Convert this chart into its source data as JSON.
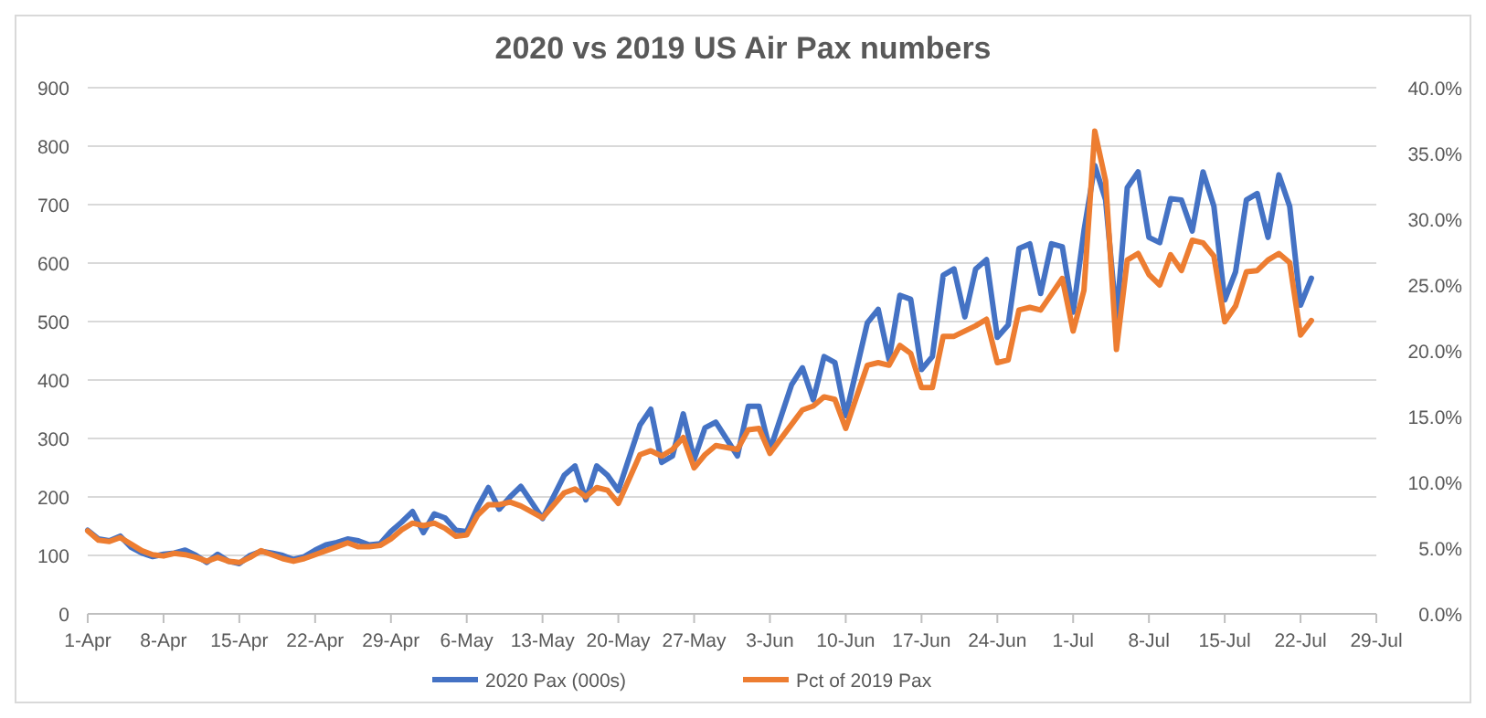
{
  "chart_data": {
    "type": "line",
    "title": "2020 vs 2019 US Air Pax numbers",
    "x": [
      "2020-04-01",
      "2020-04-02",
      "2020-04-03",
      "2020-04-04",
      "2020-04-05",
      "2020-04-06",
      "2020-04-07",
      "2020-04-08",
      "2020-04-09",
      "2020-04-10",
      "2020-04-11",
      "2020-04-12",
      "2020-04-13",
      "2020-04-14",
      "2020-04-15",
      "2020-04-16",
      "2020-04-17",
      "2020-04-18",
      "2020-04-19",
      "2020-04-20",
      "2020-04-21",
      "2020-04-22",
      "2020-04-23",
      "2020-04-24",
      "2020-04-25",
      "2020-04-26",
      "2020-04-27",
      "2020-04-28",
      "2020-04-29",
      "2020-04-30",
      "2020-05-01",
      "2020-05-02",
      "2020-05-03",
      "2020-05-04",
      "2020-05-05",
      "2020-05-06",
      "2020-05-07",
      "2020-05-08",
      "2020-05-09",
      "2020-05-10",
      "2020-05-11",
      "2020-05-13",
      "2020-05-15",
      "2020-05-16",
      "2020-05-17",
      "2020-05-18",
      "2020-05-19",
      "2020-05-20",
      "2020-05-22",
      "2020-05-23",
      "2020-05-24",
      "2020-05-25",
      "2020-05-26",
      "2020-05-27",
      "2020-05-28",
      "2020-05-29",
      "2020-05-31",
      "2020-06-01",
      "2020-06-02",
      "2020-06-03",
      "2020-06-05",
      "2020-06-06",
      "2020-06-07",
      "2020-06-08",
      "2020-06-09",
      "2020-06-10",
      "2020-06-12",
      "2020-06-13",
      "2020-06-14",
      "2020-06-15",
      "2020-06-16",
      "2020-06-17",
      "2020-06-18",
      "2020-06-19",
      "2020-06-20",
      "2020-06-21",
      "2020-06-22",
      "2020-06-23",
      "2020-06-24",
      "2020-06-25",
      "2020-06-26",
      "2020-06-27",
      "2020-06-28",
      "2020-06-29",
      "2020-06-30",
      "2020-07-01",
      "2020-07-02",
      "2020-07-03",
      "2020-07-04",
      "2020-07-05",
      "2020-07-06",
      "2020-07-07",
      "2020-07-08",
      "2020-07-09",
      "2020-07-10",
      "2020-07-11",
      "2020-07-12",
      "2020-07-13",
      "2020-07-14",
      "2020-07-15",
      "2020-07-16",
      "2020-07-17",
      "2020-07-18",
      "2020-07-19",
      "2020-07-20",
      "2020-07-21",
      "2020-07-22",
      "2020-07-23"
    ],
    "series": [
      {
        "name": "2020 Pax (000s)",
        "color": "#4472c4",
        "values": [
          143,
          128,
          125,
          133,
          114,
          104,
          98,
          102,
          104,
          109,
          100,
          88,
          102,
          90,
          86,
          100,
          107,
          104,
          100,
          93,
          98,
          109,
          118,
          122,
          128,
          125,
          118,
          120,
          141,
          157,
          175,
          139,
          171,
          164,
          143,
          141,
          182,
          216,
          179,
          200,
          218,
          163,
          237,
          253,
          195,
          253,
          237,
          211,
          323,
          350,
          259,
          270,
          342,
          264,
          318,
          328,
          270,
          355,
          355,
          280,
          392,
          421,
          366,
          440,
          430,
          339,
          498,
          521,
          435,
          545,
          538,
          418,
          440,
          579,
          590,
          508,
          590,
          606,
          473,
          494,
          625,
          633,
          548,
          633,
          628,
          516,
          655,
          767,
          708,
          505,
          729,
          756,
          644,
          635,
          710,
          708,
          655,
          756,
          697,
          537,
          585,
          708,
          719,
          644,
          751,
          697,
          528,
          574
        ]
      },
      {
        "name": "Pct of 2019 Pax",
        "color": "#ed7d31",
        "axis": "y2",
        "values": [
          6.3,
          5.6,
          5.5,
          5.8,
          5.3,
          4.8,
          4.5,
          4.4,
          4.6,
          4.5,
          4.3,
          4.0,
          4.3,
          4.0,
          3.9,
          4.3,
          4.8,
          4.5,
          4.2,
          4.0,
          4.2,
          4.5,
          4.8,
          5.1,
          5.4,
          5.1,
          5.1,
          5.2,
          5.7,
          6.4,
          6.9,
          6.7,
          6.9,
          6.5,
          5.9,
          6.0,
          7.5,
          8.3,
          8.3,
          8.5,
          8.2,
          7.3,
          9.2,
          9.5,
          8.9,
          9.6,
          9.4,
          8.4,
          12.1,
          12.4,
          12.0,
          12.5,
          13.4,
          11.1,
          12.1,
          12.8,
          12.5,
          14.0,
          14.1,
          12.2,
          14.4,
          15.5,
          15.8,
          16.5,
          16.3,
          14.1,
          18.9,
          19.1,
          18.9,
          20.4,
          19.8,
          17.2,
          17.2,
          21.1,
          21.1,
          21.5,
          21.9,
          22.4,
          19.1,
          19.3,
          23.1,
          23.3,
          23.1,
          24.3,
          25.5,
          21.5,
          24.6,
          36.7,
          32.9,
          20.1,
          26.9,
          27.4,
          25.8,
          25.0,
          27.3,
          26.1,
          28.4,
          28.2,
          27.2,
          22.2,
          23.4,
          26.0,
          26.1,
          26.9,
          27.4,
          26.7,
          21.2,
          22.3
        ]
      }
    ],
    "xlim": [
      "2020-04-01",
      "2020-07-29"
    ],
    "xticks": [
      {
        "value": "2020-04-01",
        "label": "1-Apr"
      },
      {
        "value": "2020-04-08",
        "label": "8-Apr"
      },
      {
        "value": "2020-04-15",
        "label": "15-Apr"
      },
      {
        "value": "2020-04-22",
        "label": "22-Apr"
      },
      {
        "value": "2020-04-29",
        "label": "29-Apr"
      },
      {
        "value": "2020-05-06",
        "label": "6-May"
      },
      {
        "value": "2020-05-13",
        "label": "13-May"
      },
      {
        "value": "2020-05-20",
        "label": "20-May"
      },
      {
        "value": "2020-05-27",
        "label": "27-May"
      },
      {
        "value": "2020-06-03",
        "label": "3-Jun"
      },
      {
        "value": "2020-06-10",
        "label": "10-Jun"
      },
      {
        "value": "2020-06-17",
        "label": "17-Jun"
      },
      {
        "value": "2020-06-24",
        "label": "24-Jun"
      },
      {
        "value": "2020-07-01",
        "label": "1-Jul"
      },
      {
        "value": "2020-07-08",
        "label": "8-Jul"
      },
      {
        "value": "2020-07-15",
        "label": "15-Jul"
      },
      {
        "value": "2020-07-22",
        "label": "22-Jul"
      },
      {
        "value": "2020-07-29",
        "label": "29-Jul"
      }
    ],
    "ylim": [
      0,
      900
    ],
    "yticks": [
      0,
      100,
      200,
      300,
      400,
      500,
      600,
      700,
      800,
      900
    ],
    "y2lim": [
      0,
      40
    ],
    "y2ticks": [
      {
        "value": 0,
        "label": "0.0%"
      },
      {
        "value": 5,
        "label": "5.0%"
      },
      {
        "value": 10,
        "label": "10.0%"
      },
      {
        "value": 15,
        "label": "15.0%"
      },
      {
        "value": 20,
        "label": "20.0%"
      },
      {
        "value": 25,
        "label": "25.0%"
      },
      {
        "value": 30,
        "label": "30.0%"
      },
      {
        "value": 35,
        "label": "35.0%"
      },
      {
        "value": 40,
        "label": "40.0%"
      }
    ],
    "grid": "y",
    "legend": "bottom",
    "marker": "none",
    "line_style": "solid"
  }
}
